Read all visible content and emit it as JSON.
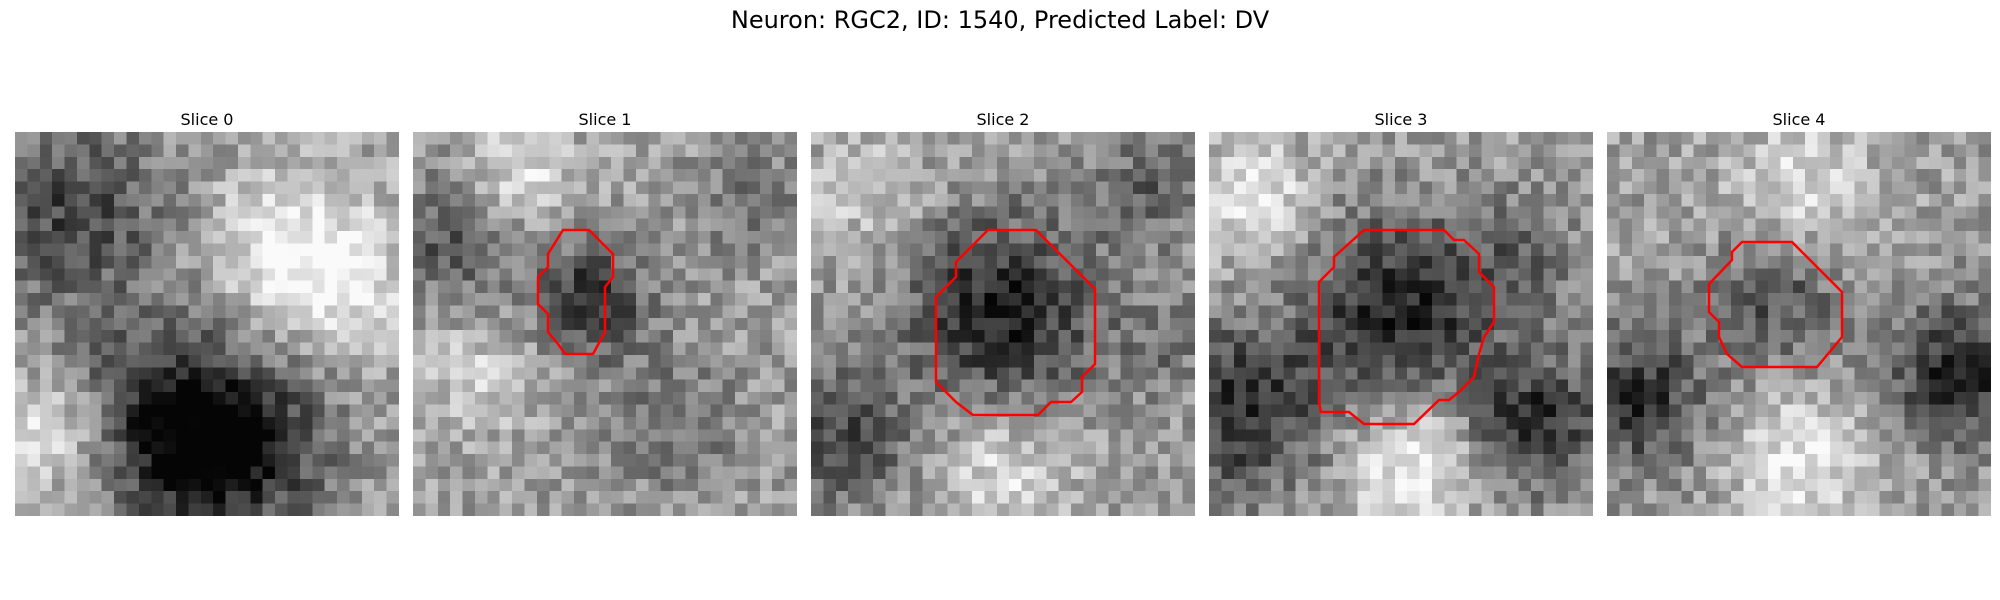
{
  "title": "Neuron: RGC2, ID: 1540, Predicted Label: DV",
  "contour_color": "#ff0000",
  "panels": [
    {
      "title": "Slice 0",
      "has_contour": false
    },
    {
      "title": "Slice 1",
      "has_contour": true
    },
    {
      "title": "Slice 2",
      "has_contour": true
    },
    {
      "title": "Slice 3",
      "has_contour": true
    },
    {
      "title": "Slice 4",
      "has_contour": true
    }
  ]
}
